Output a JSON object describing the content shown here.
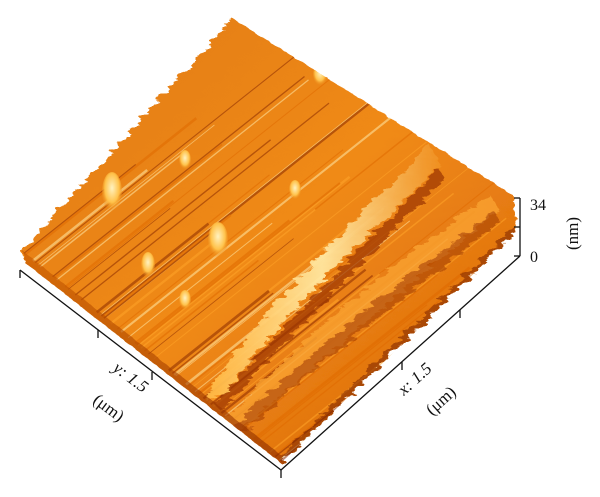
{
  "figure": {
    "x_axis": {
      "label": "x: 1.5",
      "unit": "(μm)"
    },
    "y_axis": {
      "label": "y: 1.5",
      "unit": "(μm)"
    },
    "z_axis": {
      "unit": "(nm)",
      "ticks": [
        "34",
        "0"
      ]
    }
  },
  "palette": {
    "dark": "#8a2a00",
    "mid": "#e06a00",
    "light": "#ffa52a",
    "highlight": "#ffe9a8"
  }
}
